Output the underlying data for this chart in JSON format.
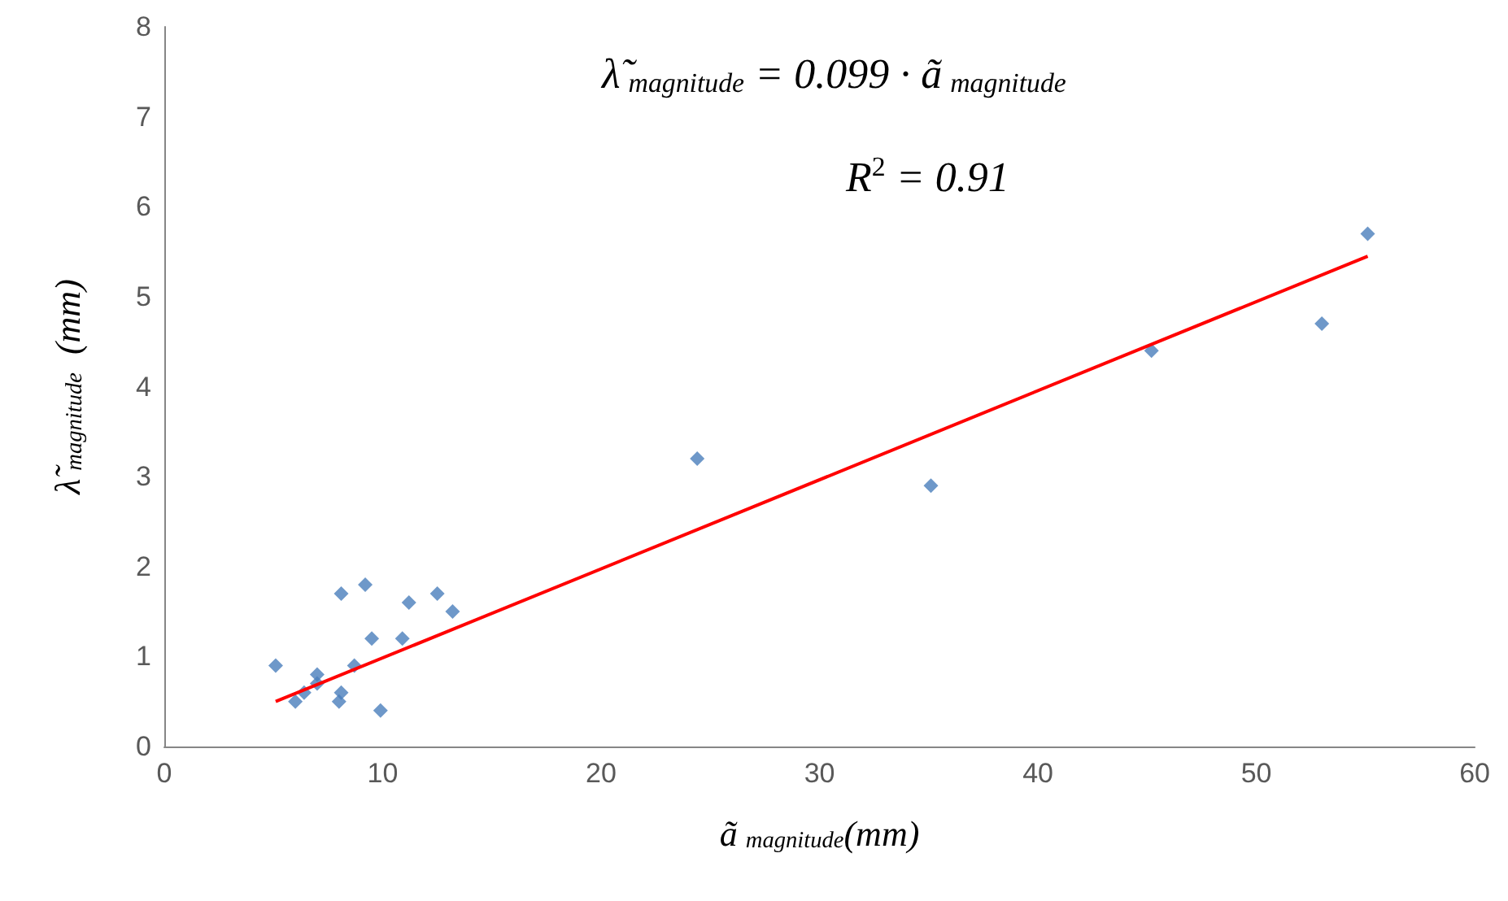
{
  "chart_data": {
    "type": "scatter",
    "xlabel": "ã$_{magnitude}$(mm)",
    "ylabel": "λ̃$_{magnitude}$  (mm)",
    "annotations": [
      "λ̃$_{magnitude}$ = 0.099 · ã$_{magnitude}$",
      "R$^{2}$ = 0.91"
    ],
    "xlim": [
      0,
      60
    ],
    "xticks": [
      0,
      10,
      20,
      30,
      40,
      50,
      60
    ],
    "ylim": [
      0,
      8
    ],
    "yticks": [
      0,
      1,
      2,
      3,
      4,
      5,
      6,
      7,
      8
    ],
    "grid": false,
    "marker": "diamond",
    "series": [
      {
        "color": "#4a7ebb",
        "x": [
          5.1,
          6.0,
          6.4,
          7.0,
          7.0,
          8.1,
          9.2,
          8.1,
          8.0,
          8.7,
          9.5,
          9.9,
          10.9,
          11.2,
          12.5,
          13.2,
          24.4,
          35.1,
          45.2,
          53.0,
          55.1
        ],
        "values": [
          0.9,
          0.5,
          0.6,
          0.8,
          0.7,
          1.7,
          1.8,
          0.6,
          0.5,
          0.9,
          1.2,
          0.4,
          1.2,
          1.6,
          1.7,
          1.5,
          3.2,
          2.9,
          4.4,
          4.7,
          5.7
        ]
      },
      {
        "type": "line",
        "color": "#ff0000",
        "marker": "none",
        "x": [
          5.1,
          55.1
        ],
        "values": [
          0.5,
          5.45
        ]
      }
    ]
  }
}
